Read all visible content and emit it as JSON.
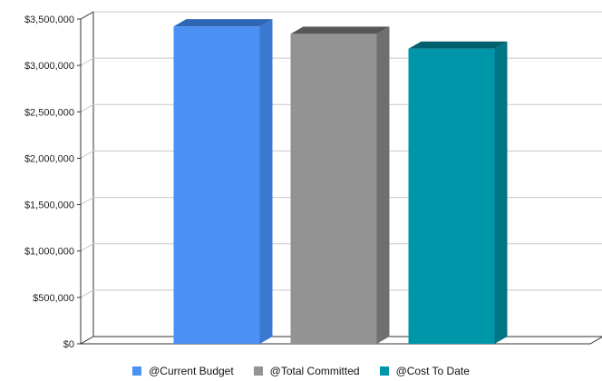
{
  "chart_data": {
    "type": "bar",
    "style": "3d-column",
    "title": "",
    "xlabel": "",
    "ylabel": "",
    "ylim": [
      0,
      3500000
    ],
    "ytick_step": 500000,
    "y_tick_labels": [
      "$0",
      "$500,000",
      "$1,000,000",
      "$1,500,000",
      "$2,000,000",
      "$2,500,000",
      "$3,000,000",
      "$3,500,000"
    ],
    "grid": true,
    "legend_position": "bottom-center",
    "series": [
      {
        "name": "@Current Budget",
        "value": 3420000,
        "color": "#4a90f5",
        "side_color": "#3a78d2",
        "top_color": "#2d66b3"
      },
      {
        "name": "@Total Committed",
        "value": 3340000,
        "color": "#939393",
        "side_color": "#6f6f6f",
        "top_color": "#575757"
      },
      {
        "name": "@Cost To Date",
        "value": 3180000,
        "color": "#0096aa",
        "side_color": "#007585",
        "top_color": "#005f6c"
      }
    ]
  }
}
